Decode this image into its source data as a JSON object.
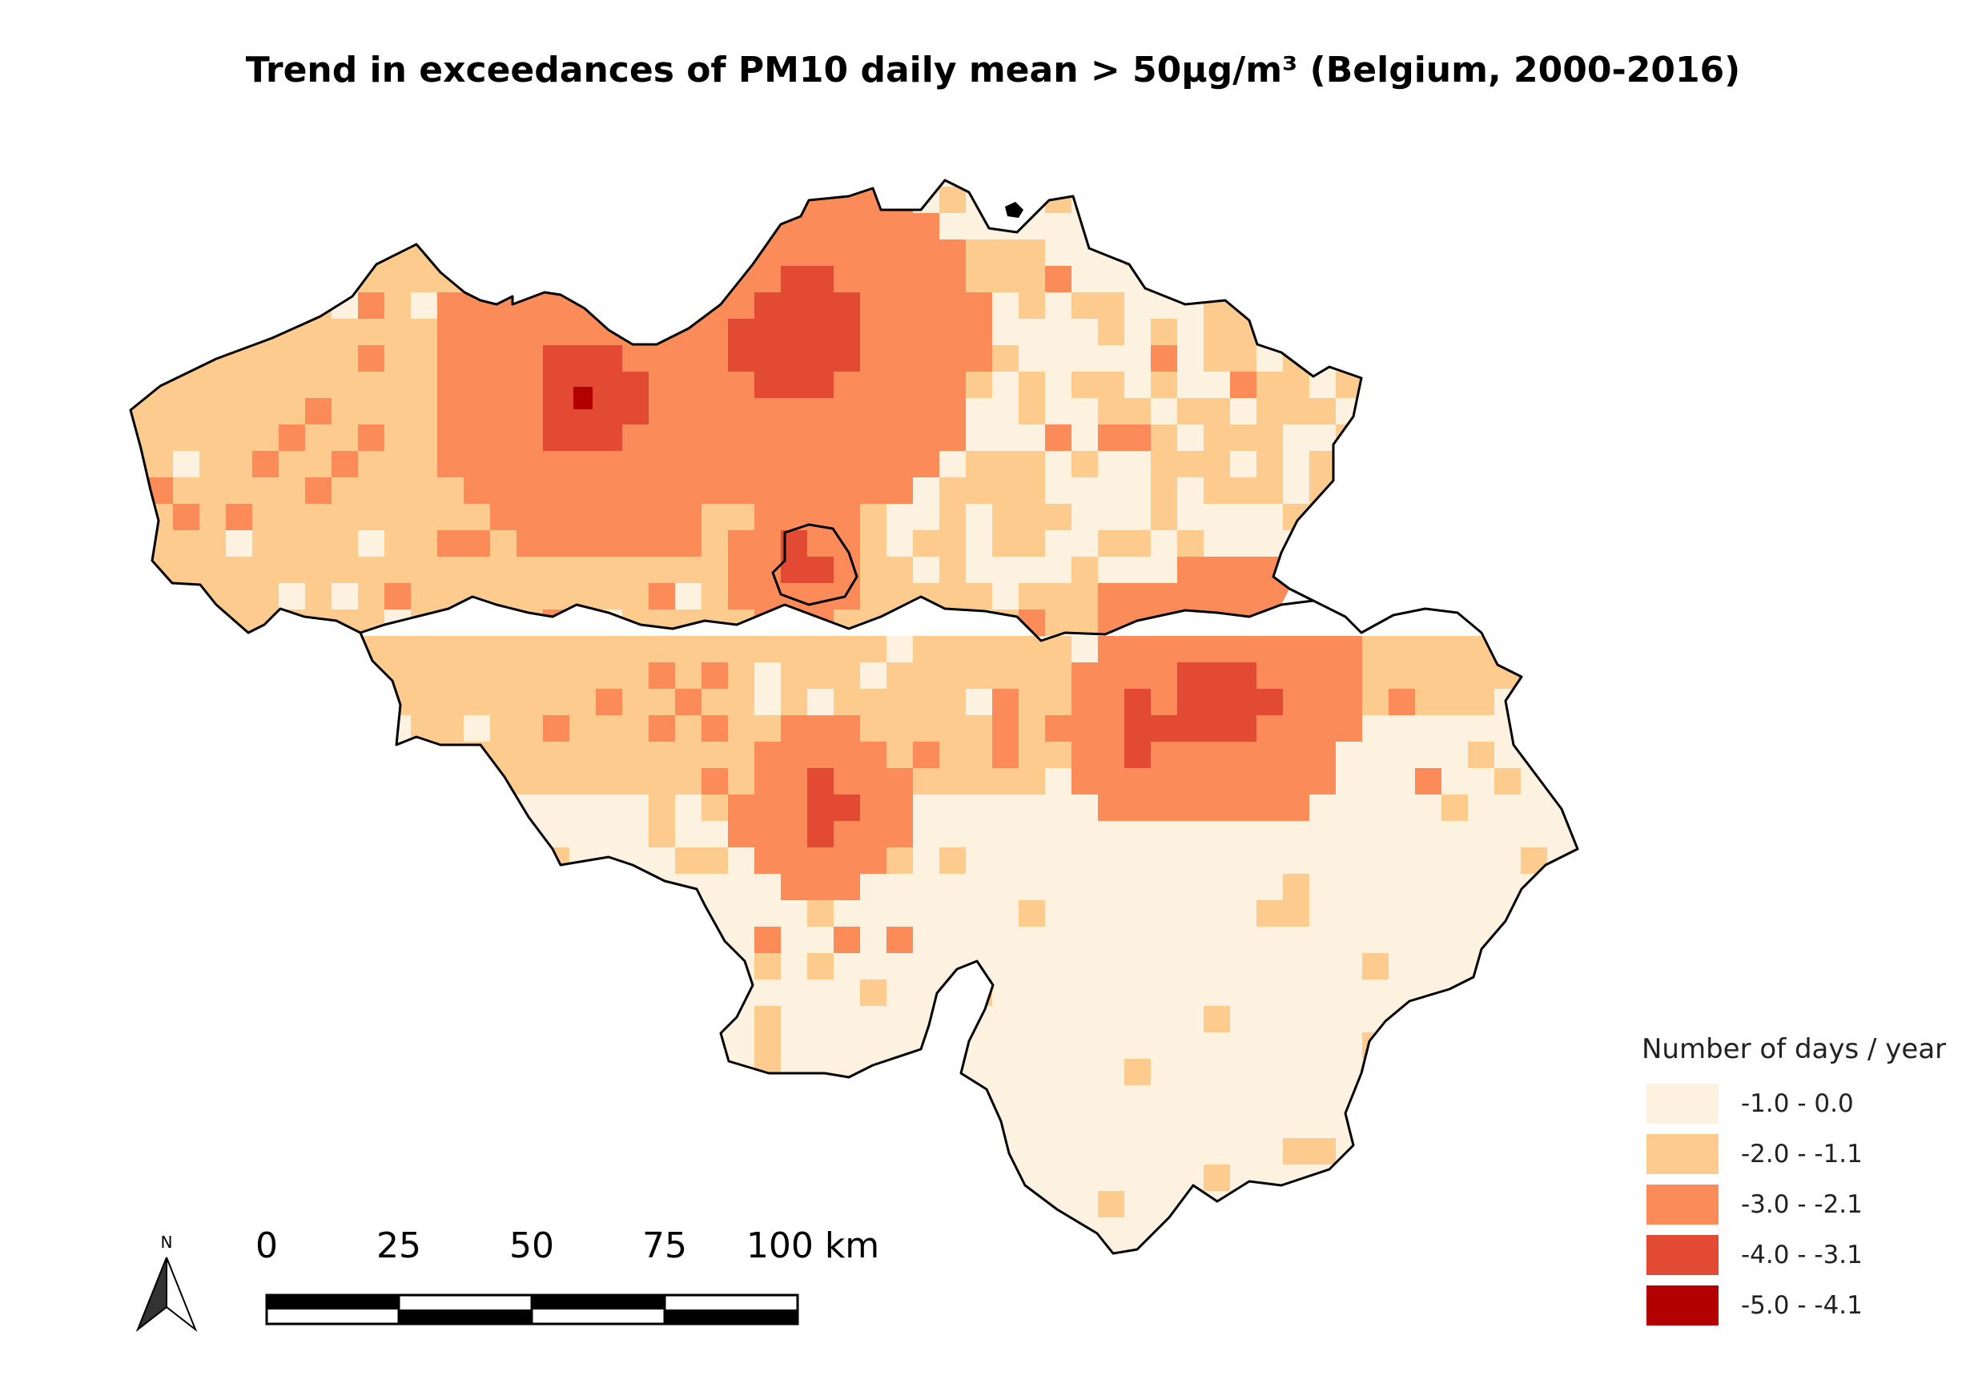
{
  "title": "Trend in exceedances of PM10 daily mean > 50µg/m³ (Belgium, 2000-2016)",
  "legend": {
    "title": "Number of days / year",
    "classes": [
      {
        "label": "-1.0 - 0.0",
        "color": "#fdf1e0"
      },
      {
        "label": "-2.0 - -1.1",
        "color": "#fccb8d"
      },
      {
        "label": "-3.0 - -2.1",
        "color": "#fb8b59"
      },
      {
        "label": "-4.0 - -3.1",
        "color": "#e34a33"
      },
      {
        "label": "-5.0 - -4.1",
        "color": "#b30000"
      }
    ]
  },
  "north_arrow": {
    "label": "N"
  },
  "scale_bar": {
    "labels": [
      "0",
      "25",
      "50",
      "75",
      "100 km"
    ]
  }
}
